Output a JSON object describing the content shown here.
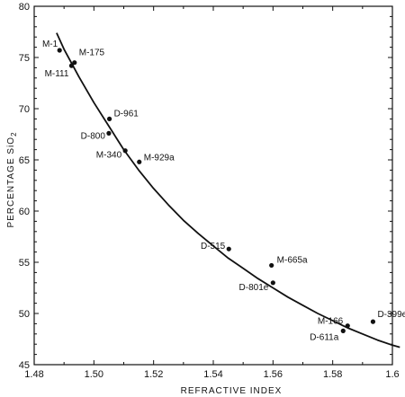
{
  "chart_data": {
    "type": "scatter",
    "title": "",
    "xlabel": "REFRACTIVE INDEX",
    "ylabel": "PERCENTAGE SiO",
    "ylabel_subscript": "2",
    "xlim": [
      1.48,
      1.6
    ],
    "ylim": [
      45,
      80
    ],
    "xticks": [
      1.48,
      1.5,
      1.52,
      1.54,
      1.56,
      1.58,
      1.6
    ],
    "xtick_labels": [
      "1.48",
      "1.50",
      "1.52",
      "1.54",
      "1.56",
      "1.58",
      "1.6"
    ],
    "yticks": [
      45,
      50,
      55,
      60,
      65,
      70,
      75,
      80
    ],
    "ytick_labels": [
      "45",
      "50",
      "55",
      "60",
      "65",
      "70",
      "75",
      "80"
    ],
    "grid": false,
    "points": [
      {
        "label": "M-1",
        "x": 1.4885,
        "y": 75.7
      },
      {
        "label": "M-175",
        "x": 1.4935,
        "y": 74.5
      },
      {
        "label": "M-111",
        "x": 1.4925,
        "y": 74.2
      },
      {
        "label": "D-961",
        "x": 1.5052,
        "y": 69.0
      },
      {
        "label": "D-800",
        "x": 1.505,
        "y": 67.6
      },
      {
        "label": "M-340",
        "x": 1.5105,
        "y": 65.9
      },
      {
        "label": "M-929a",
        "x": 1.5152,
        "y": 64.8
      },
      {
        "label": "D-515",
        "x": 1.5452,
        "y": 56.3
      },
      {
        "label": "M-665a",
        "x": 1.5595,
        "y": 54.7
      },
      {
        "label": "D-801e",
        "x": 1.56,
        "y": 53.0
      },
      {
        "label": "D-399e",
        "x": 1.5935,
        "y": 49.2
      },
      {
        "label": "M-166",
        "x": 1.585,
        "y": 48.8
      },
      {
        "label": "D-611a",
        "x": 1.5835,
        "y": 48.3
      }
    ],
    "fit_curve": {
      "x": [
        1.4875,
        1.49,
        1.495,
        1.5,
        1.505,
        1.51,
        1.515,
        1.52,
        1.525,
        1.53,
        1.535,
        1.54,
        1.545,
        1.55,
        1.555,
        1.56,
        1.565,
        1.57,
        1.575,
        1.58,
        1.585,
        1.59,
        1.595,
        1.6,
        1.6025
      ],
      "y": [
        77.4,
        75.8,
        73.1,
        70.6,
        68.3,
        66.0,
        64.0,
        62.2,
        60.6,
        59.1,
        57.8,
        56.6,
        55.4,
        54.4,
        53.4,
        52.5,
        51.6,
        50.8,
        50.0,
        49.3,
        48.6,
        48.0,
        47.4,
        46.9,
        46.7
      ]
    }
  }
}
